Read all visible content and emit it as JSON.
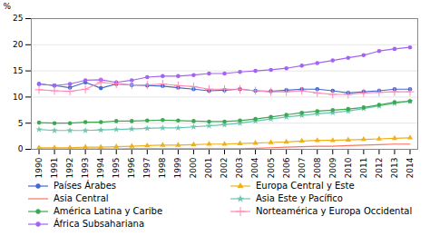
{
  "chart_data": {
    "type": "line",
    "x": [
      1990,
      1991,
      1992,
      1993,
      1994,
      1995,
      1996,
      1997,
      1998,
      1999,
      2000,
      2001,
      2002,
      2003,
      2004,
      2005,
      2006,
      2007,
      2008,
      2009,
      2010,
      2011,
      2012,
      2013,
      2014
    ],
    "series": [
      {
        "name": "Países Árabes",
        "marker": "circle",
        "values": [
          12.5,
          12.2,
          11.8,
          12.8,
          11.7,
          12.5,
          12.3,
          12.2,
          12.1,
          11.8,
          11.5,
          11.2,
          11.3,
          11.5,
          11.2,
          11.1,
          11.3,
          11.5,
          11.5,
          11.2,
          10.8,
          11.0,
          11.2,
          11.5,
          11.5
        ]
      },
      {
        "name": "Europa Central y Este",
        "marker": "triangle",
        "values": [
          0.3,
          0.3,
          0.3,
          0.4,
          0.4,
          0.5,
          0.6,
          0.7,
          0.8,
          0.8,
          0.9,
          1.0,
          1.0,
          1.1,
          1.2,
          1.3,
          1.4,
          1.6,
          1.7,
          1.7,
          1.8,
          1.9,
          2.0,
          2.1,
          2.2
        ]
      },
      {
        "name": "Asia Central",
        "marker": "none",
        "values": [
          0.05,
          0.05,
          0.05,
          0.05,
          0.05,
          0.05,
          0.1,
          0.1,
          0.1,
          0.1,
          0.1,
          0.1,
          0.1,
          0.1,
          0.2,
          0.3,
          0.4,
          0.5,
          0.6,
          0.6,
          0.7,
          0.8,
          0.9,
          1.0,
          1.0
        ]
      },
      {
        "name": "Asia Este y Pacífico",
        "marker": "star",
        "values": [
          3.8,
          3.6,
          3.6,
          3.6,
          3.7,
          3.8,
          3.9,
          4.0,
          4.1,
          4.1,
          4.3,
          4.5,
          4.7,
          5.0,
          5.4,
          5.8,
          6.2,
          6.5,
          6.8,
          7.0,
          7.3,
          7.8,
          8.3,
          8.8,
          9.2
        ]
      },
      {
        "name": "América Latina y Caribe",
        "marker": "circle",
        "values": [
          5.1,
          5.0,
          5.0,
          5.2,
          5.2,
          5.4,
          5.4,
          5.5,
          5.6,
          5.5,
          5.4,
          5.3,
          5.3,
          5.5,
          5.8,
          6.2,
          6.6,
          7.0,
          7.3,
          7.5,
          7.7,
          8.0,
          8.5,
          9.0,
          9.2
        ]
      },
      {
        "name": "Norteamérica y Europa Occidental",
        "marker": "plus",
        "values": [
          11.4,
          11.2,
          11.1,
          11.5,
          12.8,
          12.5,
          12.3,
          12.3,
          12.5,
          12.2,
          12.0,
          11.5,
          11.5,
          11.5,
          11.2,
          11.0,
          11.0,
          11.2,
          10.8,
          10.5,
          10.5,
          10.8,
          10.9,
          11.0,
          11.0
        ]
      },
      {
        "name": "África Subsahariana",
        "marker": "circle",
        "values": [
          12.5,
          12.2,
          12.5,
          13.2,
          13.3,
          12.8,
          13.2,
          13.8,
          14.0,
          14.0,
          14.2,
          14.5,
          14.5,
          14.8,
          15.0,
          15.2,
          15.5,
          16.0,
          16.5,
          17.0,
          17.5,
          18.0,
          18.8,
          19.2,
          19.5
        ]
      }
    ],
    "ylabel": "%",
    "xlim": [
      1989.5,
      2014.5
    ],
    "xticks": [
      1990,
      1991,
      1992,
      1993,
      1994,
      1995,
      1996,
      1997,
      1998,
      1999,
      2000,
      2001,
      2002,
      2003,
      2004,
      2005,
      2006,
      2007,
      2008,
      2009,
      2010,
      2011,
      2012,
      2013,
      2014
    ],
    "ylim": [
      0,
      25
    ],
    "yticks": [
      0,
      5,
      10,
      15,
      20,
      25
    ],
    "grid": "y",
    "legend": "bottom"
  }
}
